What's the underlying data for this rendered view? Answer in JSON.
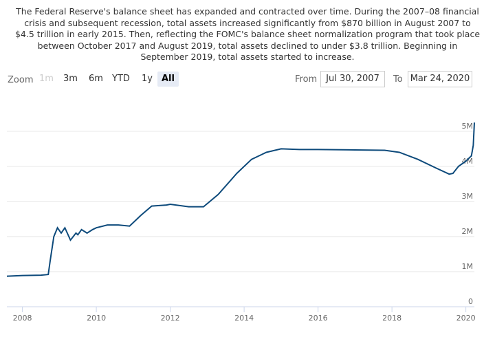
{
  "description": [
    "The Federal Reserve's balance sheet has expanded and contracted over time. During the 2007–08 financial",
    "crisis and subsequent recession, total assets increased significantly from $870 billion in August 2007 to",
    "$4.5 trillion in early 2015. Then, reflecting the FOMC's balance sheet normalization program that took place",
    "between October 2017 and August 2019, total assets declined to under $3.8 trillion. Beginning in",
    "September 2019, total assets started to increase."
  ],
  "zoom": {
    "label": "Zoom",
    "buttons": [
      {
        "text": "1m",
        "state": "disabled"
      },
      {
        "text": "3m",
        "state": "normal"
      },
      {
        "text": "6m",
        "state": "normal"
      },
      {
        "text": "YTD",
        "state": "normal"
      },
      {
        "text": "1y",
        "state": "normal"
      },
      {
        "text": "All",
        "state": "selected"
      }
    ]
  },
  "range": {
    "from_label": "From",
    "from": "Jul 30, 2007",
    "to_label": "To",
    "to": "Mar 24, 2020"
  },
  "chart_data": {
    "type": "line",
    "color": "#0d4a7b",
    "grid": true,
    "x": [
      2007.58,
      2008.0,
      2008.5,
      2008.7,
      2008.75,
      2008.85,
      2008.95,
      2009.05,
      2009.15,
      2009.3,
      2009.45,
      2009.5,
      2009.6,
      2009.75,
      2009.9,
      2010.0,
      2010.3,
      2010.6,
      2010.9,
      2011.2,
      2011.5,
      2011.9,
      2012.0,
      2012.5,
      2012.9,
      2013.3,
      2013.8,
      2014.2,
      2014.6,
      2015.0,
      2015.5,
      2016.0,
      2017.0,
      2017.8,
      2018.2,
      2018.7,
      2019.2,
      2019.55,
      2019.65,
      2019.8,
      2020.0,
      2020.15,
      2020.2,
      2020.23
    ],
    "values": [
      0.87,
      0.89,
      0.9,
      0.92,
      1.3,
      2.0,
      2.25,
      2.1,
      2.25,
      1.9,
      2.1,
      2.05,
      2.2,
      2.1,
      2.2,
      2.25,
      2.33,
      2.33,
      2.3,
      2.6,
      2.87,
      2.9,
      2.92,
      2.85,
      2.85,
      3.2,
      3.8,
      4.2,
      4.4,
      4.5,
      4.48,
      4.48,
      4.47,
      4.46,
      4.4,
      4.2,
      3.95,
      3.78,
      3.8,
      4.0,
      4.15,
      4.3,
      4.6,
      5.25
    ],
    "xlim": [
      2007.58,
      2020.23
    ],
    "xticks": [
      2008,
      2010,
      2012,
      2014,
      2016,
      2018,
      2020
    ],
    "ylim": [
      0,
      5.9
    ],
    "yticks": [
      0,
      {
        "value": 1,
        "label": "1M"
      },
      {
        "value": 2,
        "label": "2M"
      },
      {
        "value": 3,
        "label": "3M"
      },
      {
        "value": 4,
        "label": "4M"
      },
      {
        "value": 5,
        "label": "5M"
      }
    ]
  }
}
